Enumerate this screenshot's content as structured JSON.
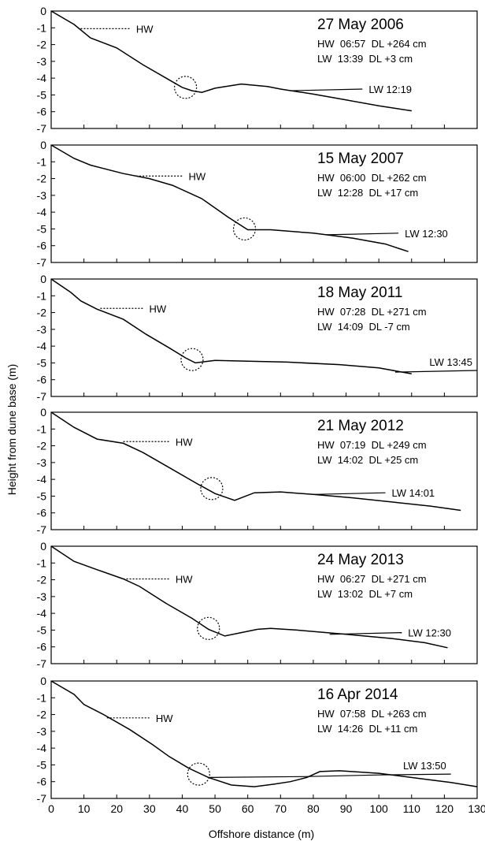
{
  "chart_data": {
    "type": "line",
    "ylabel": "Height from dune base (m)",
    "xlabel": "Offshore distance (m)",
    "xlim": [
      0,
      130
    ],
    "ylim": [
      -7,
      0
    ],
    "x_ticks": [
      "0",
      "10",
      "20",
      "30",
      "40",
      "50",
      "60",
      "70",
      "80",
      "90",
      "100",
      "110",
      "120",
      "130"
    ],
    "y_ticks": [
      "0",
      "-1",
      "-2",
      "-3",
      "-4",
      "-5",
      "-6",
      "-7"
    ],
    "panels": [
      {
        "date": "27 May 2006",
        "info": [
          "HW  06:57  DL +264 cm",
          "LW  13:39  DL +3 cm"
        ],
        "hw_label": "HW",
        "lw_label": "LW  12:19",
        "profile": [
          [
            0,
            0
          ],
          [
            7,
            -0.8
          ],
          [
            12,
            -1.6
          ],
          [
            20,
            -2.2
          ],
          [
            28,
            -3.2
          ],
          [
            36,
            -4.1
          ],
          [
            40,
            -4.55
          ],
          [
            43,
            -4.75
          ],
          [
            46,
            -4.85
          ],
          [
            50,
            -4.6
          ],
          [
            58,
            -4.35
          ],
          [
            66,
            -4.5
          ],
          [
            70,
            -4.65
          ],
          [
            80,
            -4.95
          ],
          [
            90,
            -5.3
          ],
          [
            100,
            -5.65
          ],
          [
            110,
            -5.95
          ]
        ],
        "hw_line": [
          [
            9,
            -1.05
          ],
          [
            24,
            -1.05
          ]
        ],
        "lw_line": [
          [
            73,
            -4.75
          ],
          [
            95,
            -4.65
          ]
        ],
        "circle": [
          41,
          -4.55
        ]
      },
      {
        "date": "15 May 2007",
        "info": [
          "HW  06:00  DL +262 cm",
          "LW  12:28  DL +17 cm"
        ],
        "hw_label": "HW",
        "lw_label": "LW  12:30",
        "profile": [
          [
            0,
            0
          ],
          [
            7,
            -0.8
          ],
          [
            12,
            -1.2
          ],
          [
            22,
            -1.7
          ],
          [
            30,
            -2.0
          ],
          [
            37,
            -2.4
          ],
          [
            46,
            -3.2
          ],
          [
            54,
            -4.3
          ],
          [
            60,
            -5.05
          ],
          [
            67,
            -5.05
          ],
          [
            80,
            -5.25
          ],
          [
            92,
            -5.55
          ],
          [
            102,
            -5.9
          ],
          [
            109,
            -6.35
          ]
        ],
        "hw_line": [
          [
            26,
            -1.85
          ],
          [
            40,
            -1.85
          ]
        ],
        "lw_line": [
          [
            84,
            -5.35
          ],
          [
            106,
            -5.25
          ]
        ],
        "circle": [
          59,
          -5.0
        ]
      },
      {
        "date": "18 May 2011",
        "info": [
          "HW  07:28  DL +271 cm",
          "LW  14:09  DL -7 cm"
        ],
        "hw_label": "HW",
        "lw_label": "LW  13:45",
        "profile": [
          [
            0,
            0
          ],
          [
            6,
            -0.8
          ],
          [
            9,
            -1.3
          ],
          [
            14,
            -1.8
          ],
          [
            22,
            -2.4
          ],
          [
            29,
            -3.3
          ],
          [
            36,
            -4.1
          ],
          [
            41,
            -4.7
          ],
          [
            44,
            -5.0
          ],
          [
            50,
            -4.85
          ],
          [
            60,
            -4.9
          ],
          [
            72,
            -4.95
          ],
          [
            88,
            -5.1
          ],
          [
            100,
            -5.3
          ],
          [
            110,
            -5.65
          ]
        ],
        "hw_line": [
          [
            15,
            -1.75
          ],
          [
            28,
            -1.75
          ]
        ],
        "lw_line": [
          [
            105,
            -5.55
          ],
          [
            130,
            -5.45
          ]
        ],
        "circle": [
          43,
          -4.8
        ]
      },
      {
        "date": "21 May 2012",
        "info": [
          "HW  07:19  DL +249 cm",
          "LW  14:02  DL +25 cm"
        ],
        "hw_label": "HW",
        "lw_label": "LW  14:01",
        "profile": [
          [
            0,
            0
          ],
          [
            7,
            -0.9
          ],
          [
            14,
            -1.6
          ],
          [
            22,
            -1.85
          ],
          [
            28,
            -2.4
          ],
          [
            36,
            -3.3
          ],
          [
            44,
            -4.2
          ],
          [
            50,
            -4.85
          ],
          [
            56,
            -5.25
          ],
          [
            62,
            -4.8
          ],
          [
            70,
            -4.75
          ],
          [
            80,
            -4.9
          ],
          [
            92,
            -5.1
          ],
          [
            104,
            -5.35
          ],
          [
            116,
            -5.6
          ],
          [
            125,
            -5.85
          ]
        ],
        "hw_line": [
          [
            22,
            -1.75
          ],
          [
            36,
            -1.75
          ]
        ],
        "lw_line": [
          [
            80,
            -4.9
          ],
          [
            102,
            -4.8
          ]
        ],
        "circle": [
          49,
          -4.55
        ]
      },
      {
        "date": "24 May 2013",
        "info": [
          "HW  06:27  DL +271 cm",
          "LW  13:02  DL +7 cm"
        ],
        "hw_label": "HW",
        "lw_label": "LW  12:30",
        "profile": [
          [
            0,
            0
          ],
          [
            7,
            -0.9
          ],
          [
            14,
            -1.4
          ],
          [
            22,
            -1.95
          ],
          [
            27,
            -2.4
          ],
          [
            35,
            -3.4
          ],
          [
            43,
            -4.3
          ],
          [
            48,
            -4.95
          ],
          [
            53,
            -5.35
          ],
          [
            58,
            -5.15
          ],
          [
            63,
            -4.95
          ],
          [
            67,
            -4.9
          ],
          [
            75,
            -5.0
          ],
          [
            90,
            -5.25
          ],
          [
            104,
            -5.5
          ],
          [
            114,
            -5.75
          ],
          [
            121,
            -6.05
          ]
        ],
        "hw_line": [
          [
            22,
            -1.95
          ],
          [
            36,
            -1.95
          ]
        ],
        "lw_line": [
          [
            85,
            -5.25
          ],
          [
            107,
            -5.15
          ]
        ],
        "circle": [
          48,
          -4.9
        ]
      },
      {
        "date": "16 Apr 2014",
        "info": [
          "HW  07:58  DL +263 cm",
          "LW  14:26  DL +11 cm"
        ],
        "hw_label": "HW",
        "lw_label": "LW  13:50",
        "profile": [
          [
            0,
            0
          ],
          [
            7,
            -0.8
          ],
          [
            10,
            -1.4
          ],
          [
            16,
            -2.0
          ],
          [
            24,
            -2.9
          ],
          [
            31,
            -3.8
          ],
          [
            36,
            -4.5
          ],
          [
            42,
            -5.2
          ],
          [
            48,
            -5.75
          ],
          [
            55,
            -6.2
          ],
          [
            62,
            -6.3
          ],
          [
            68,
            -6.15
          ],
          [
            73,
            -6.0
          ],
          [
            78,
            -5.75
          ],
          [
            82,
            -5.4
          ],
          [
            88,
            -5.35
          ],
          [
            100,
            -5.5
          ],
          [
            112,
            -5.8
          ],
          [
            122,
            -6.05
          ],
          [
            130,
            -6.3
          ]
        ],
        "hw_line": [
          [
            17,
            -2.2
          ],
          [
            30,
            -2.2
          ]
        ],
        "lw_line": [
          [
            48,
            -5.75
          ],
          [
            77,
            -5.7
          ],
          [
            100,
            -5.6
          ],
          [
            122,
            -5.55
          ]
        ],
        "circle": [
          45,
          -5.55
        ]
      }
    ]
  }
}
